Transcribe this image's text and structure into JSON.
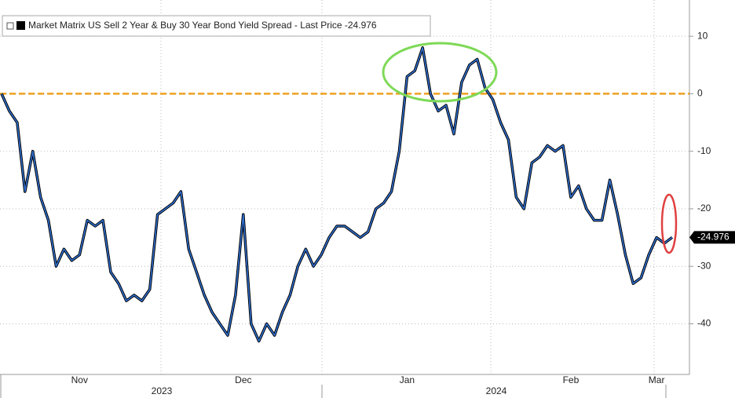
{
  "chart_data": {
    "type": "line",
    "categories": [
      null,
      null,
      null,
      null,
      null,
      null,
      null,
      null,
      null,
      null,
      "Nov",
      null,
      null,
      null,
      null,
      null,
      null,
      null,
      null,
      null,
      null,
      null,
      null,
      null,
      null,
      null,
      null,
      null,
      null,
      null,
      null,
      "Dec",
      null,
      null,
      null,
      null,
      null,
      null,
      null,
      null,
      null,
      null,
      null,
      null,
      null,
      null,
      null,
      null,
      null,
      null,
      null,
      null,
      "Jan",
      null,
      null,
      null,
      null,
      null,
      null,
      null,
      null,
      null,
      null,
      null,
      null,
      null,
      null,
      null,
      null,
      null,
      null,
      null,
      null,
      "Feb",
      null,
      null,
      null,
      null,
      null,
      null,
      null,
      null,
      null,
      null,
      "Mar",
      null,
      null
    ],
    "year_labels": [
      "2023",
      "2024"
    ],
    "series": [
      {
        "name": "Market Matrix US Sell 2 Year & Buy 30 Year Bond Yield Spread - Last Price -24.976",
        "color": "#2f6fd0",
        "values": [
          0,
          -3,
          -5,
          -17,
          -10,
          -18,
          -22,
          -30,
          -27,
          -29,
          -28,
          -22,
          -23,
          -22,
          -31,
          -33,
          -36,
          -35,
          -36,
          -34,
          -21,
          -20,
          -19,
          -17,
          -27,
          -31,
          -35,
          -38,
          -40,
          -42,
          -35,
          -21,
          -40,
          -43,
          -40,
          -42,
          -38,
          -35,
          -30,
          -27,
          -30,
          -28,
          -25,
          -23,
          -23,
          -24,
          -25,
          -24,
          -20,
          -19,
          -17,
          -10,
          3,
          4,
          8,
          0,
          -3,
          -2,
          -7,
          2,
          5,
          6,
          1,
          -1,
          -5,
          -8,
          -18,
          -20,
          -12,
          -11,
          -9,
          -10,
          -9,
          -18,
          -16,
          -20,
          -22,
          -22,
          -15,
          -21,
          -28,
          -33,
          -32,
          -28,
          -25,
          -26,
          -24.976
        ]
      }
    ],
    "reference_line": 0,
    "reference_color": "#f0a020",
    "ylim": [
      -48.8,
      16.3
    ],
    "yticks": [
      -40,
      -30,
      -20,
      -10,
      0,
      10
    ],
    "grid": true
  }
}
